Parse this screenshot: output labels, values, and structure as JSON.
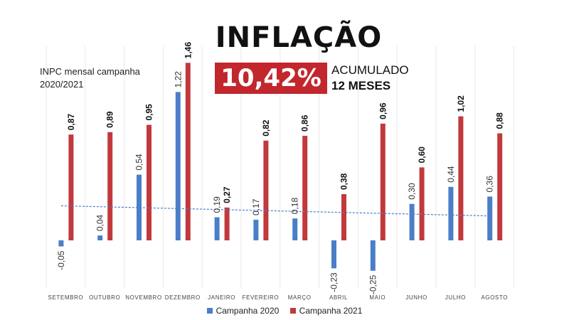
{
  "colors": {
    "series_2020": "#4a7ec7",
    "series_2021": "#c1393d",
    "accent": "#c1272d"
  },
  "header": {
    "title": "INFLAÇÃO",
    "subtitle_line1": "INPC mensal campanha",
    "subtitle_line2": "2020/2021",
    "accumulated_value": "10,42%",
    "accumulated_label_line1": "ACUMULADO",
    "accumulated_label_line2": "12 MESES"
  },
  "chart_data": {
    "type": "bar",
    "title": "INFLAÇÃO",
    "subtitle": "INPC mensal campanha 2020/2021",
    "categories": [
      "SETEMBRO",
      "OUTUBRO",
      "NOVEMBRO",
      "DEZEMBRO",
      "JANEIRO",
      "FEVEREIRO",
      "MARÇO",
      "ABRIL",
      "MAIO",
      "JUNHO",
      "JULHO",
      "AGOSTO"
    ],
    "series": [
      {
        "name": "Campanha 2020",
        "values": [
          -0.05,
          0.04,
          0.54,
          1.22,
          0.19,
          0.17,
          0.18,
          -0.23,
          -0.25,
          0.3,
          0.44,
          0.36
        ],
        "labels": [
          "-0,05",
          "0,04",
          "0,54",
          "1,22",
          "0,19",
          "0,17",
          "0,18",
          "-0,23",
          "-0,25",
          "0,30",
          "0,44",
          "0,36"
        ]
      },
      {
        "name": "Campanha 2021",
        "values": [
          0.87,
          0.89,
          0.95,
          1.46,
          0.27,
          0.82,
          0.86,
          0.38,
          0.96,
          0.6,
          1.02,
          0.88
        ],
        "labels": [
          "0,87",
          "0,89",
          "0,95",
          "1,46",
          "0,27",
          "0,82",
          "0,86",
          "0,38",
          "0,96",
          "0,60",
          "1,02",
          "0,88"
        ]
      }
    ],
    "trendline": {
      "series": "Campanha 2020",
      "style": "dashed"
    },
    "xlabel": "",
    "ylabel": "",
    "ylim": [
      -0.35,
      1.5
    ],
    "grid": false,
    "legend": "bottom-center"
  },
  "legend": {
    "items": [
      "Campanha 2020",
      "Campanha 2021"
    ]
  }
}
